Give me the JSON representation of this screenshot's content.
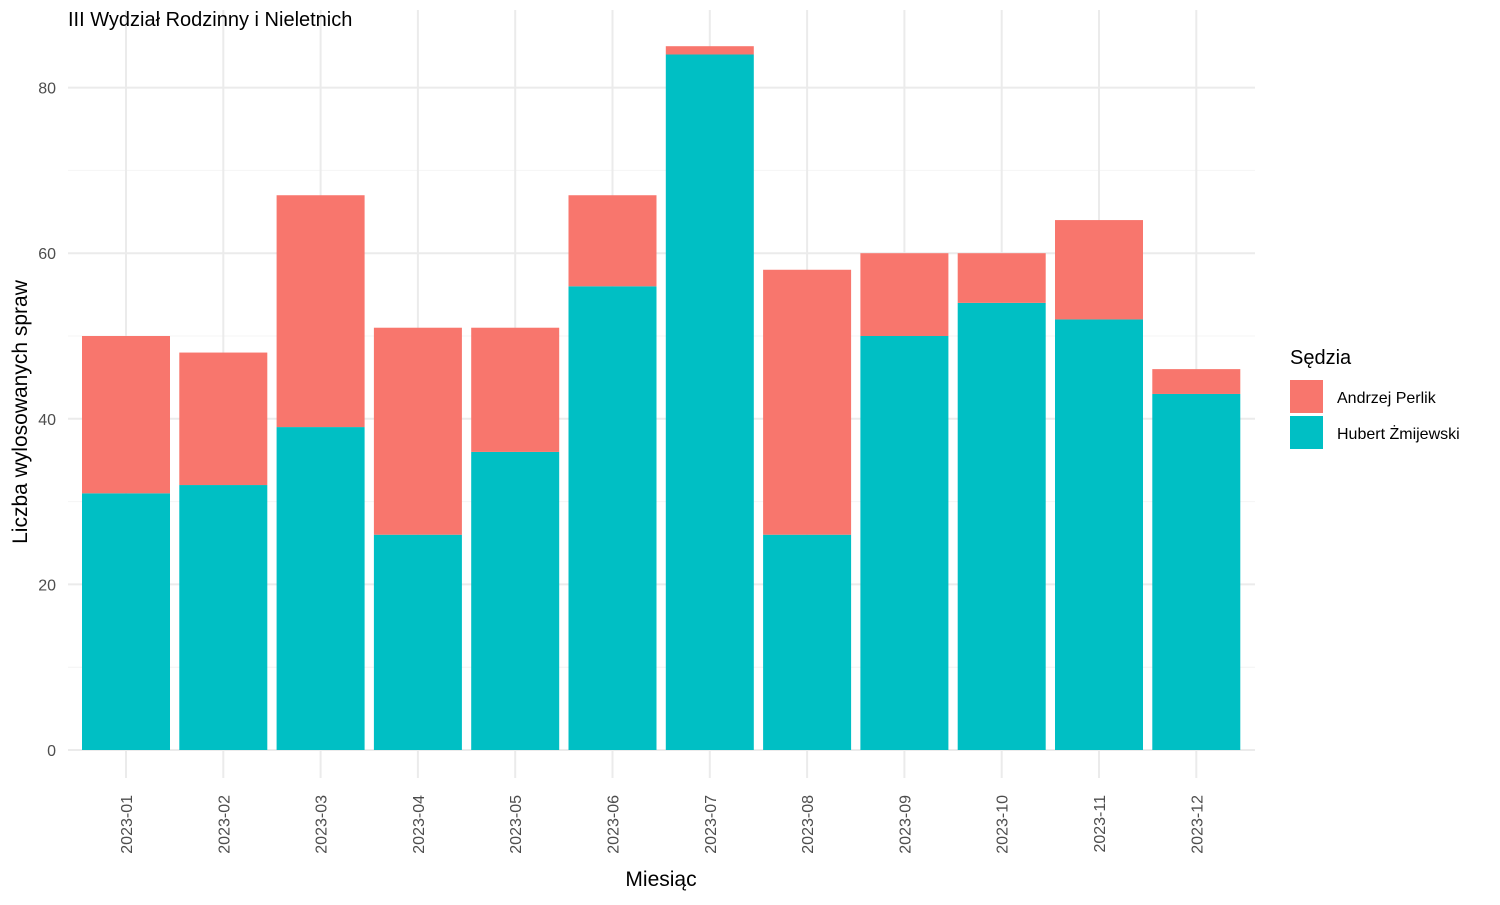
{
  "chart_data": {
    "type": "bar",
    "stacked": true,
    "title": "III Wydział Rodzinny i Nieletnich",
    "xlabel": "Miesiąc",
    "ylabel": "Liczba wylosowanych spraw",
    "categories": [
      "2023-01",
      "2023-02",
      "2023-03",
      "2023-04",
      "2023-05",
      "2023-06",
      "2023-07",
      "2023-08",
      "2023-09",
      "2023-10",
      "2023-11",
      "2023-12"
    ],
    "series": [
      {
        "name": "Hubert Żmijewski",
        "color": "#00BFC4",
        "values": [
          31,
          32,
          39,
          26,
          36,
          56,
          84,
          26,
          50,
          54,
          52,
          43
        ]
      },
      {
        "name": "Andrzej Perlik",
        "color": "#F8766D",
        "values": [
          19,
          16,
          28,
          25,
          15,
          11,
          1,
          32,
          10,
          6,
          12,
          3
        ]
      }
    ],
    "legend": {
      "title": "Sędzia",
      "position": "right",
      "entries": [
        "Andrzej Perlik",
        "Hubert Żmijewski"
      ]
    },
    "ylim": [
      0,
      85
    ],
    "yticks": [
      0,
      20,
      40,
      60,
      80
    ],
    "grid": true
  }
}
